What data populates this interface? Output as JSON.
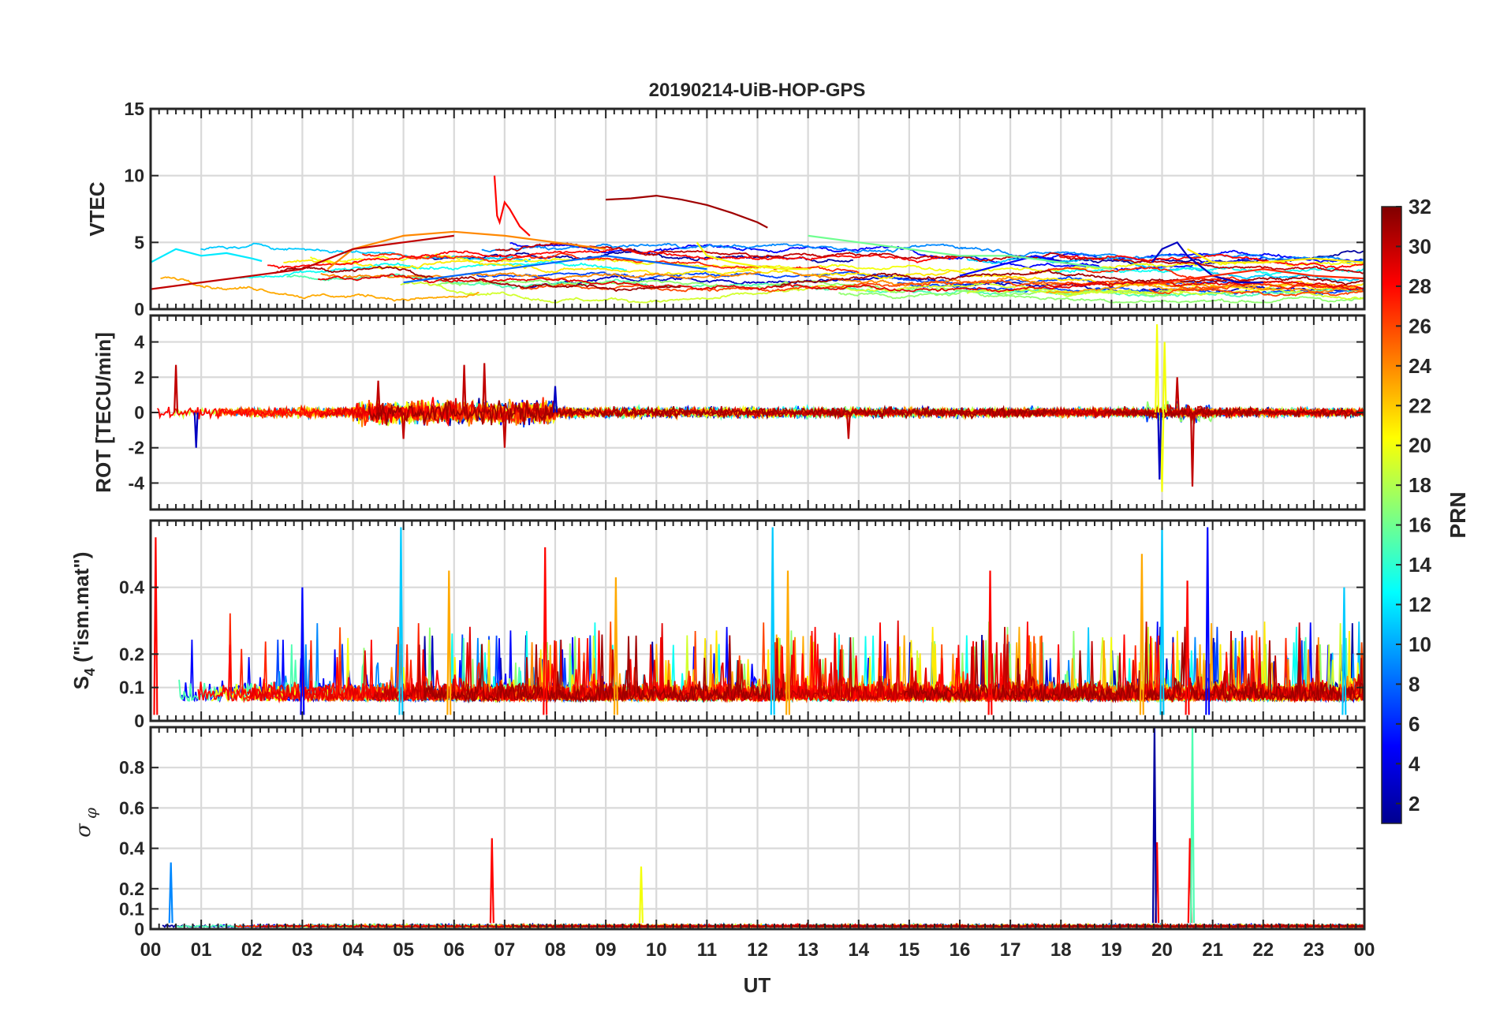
{
  "chart_data": {
    "type": "line",
    "title": "20190214-UiB-HOP-GPS",
    "xlabel": "UT",
    "x_ticks": [
      "00",
      "01",
      "02",
      "03",
      "04",
      "05",
      "06",
      "07",
      "08",
      "09",
      "10",
      "11",
      "12",
      "13",
      "14",
      "15",
      "16",
      "17",
      "18",
      "19",
      "20",
      "21",
      "22",
      "23",
      "00"
    ],
    "xlim": [
      0,
      24
    ],
    "grid": true,
    "colorbar": {
      "label": "PRN",
      "range": [
        1,
        32
      ],
      "ticks": [
        "2",
        "4",
        "6",
        "8",
        "10",
        "12",
        "14",
        "16",
        "18",
        "20",
        "22",
        "24",
        "26",
        "28",
        "30",
        "32"
      ],
      "colormap": "jet"
    },
    "panels": [
      {
        "id": "vtec",
        "ylabel": "VTEC",
        "ylim": [
          0,
          15
        ],
        "yticks": [
          "0",
          "5",
          "10",
          "15"
        ],
        "ytick_values": [
          0,
          5,
          10,
          15
        ],
        "series": [
          {
            "name": "PRN 31",
            "prn": 31,
            "x": [
              9.0,
              9.5,
              10.0,
              10.5,
              11.0,
              11.5,
              12.0,
              12.2
            ],
            "y": [
              8.2,
              8.3,
              8.5,
              8.2,
              7.8,
              7.2,
              6.5,
              6.1
            ]
          },
          {
            "name": "PRN 28",
            "prn": 28,
            "x": [
              6.8,
              6.85,
              6.9,
              7.0,
              7.1,
              7.3,
              7.5
            ],
            "y": [
              10.0,
              7.0,
              6.5,
              8.0,
              7.5,
              6.2,
              5.5
            ]
          },
          {
            "name": "PRN 20",
            "prn": 20,
            "x": [
              10.8,
              11.0,
              11.2,
              11.5,
              12.0,
              12.5,
              13.0
            ],
            "y": [
              5.0,
              4.0,
              3.8,
              3.5,
              3.2,
              3.0,
              3.0
            ]
          },
          {
            "name": "PRN 12",
            "prn": 12,
            "x": [
              0.0,
              0.5,
              1.0,
              1.5,
              2.0,
              2.2
            ],
            "y": [
              3.5,
              4.5,
              4.0,
              4.2,
              3.8,
              3.6
            ]
          },
          {
            "name": "PRN 5",
            "prn": 5,
            "x": [
              16.0,
              16.5,
              17.0,
              17.5,
              18.0,
              18.5
            ],
            "y": [
              2.5,
              3.0,
              3.5,
              4.0,
              3.5,
              3.2
            ]
          },
          {
            "name": "PRN 24",
            "prn": 24,
            "x": [
              3.5,
              4.0,
              5.0,
              6.0,
              7.0,
              8.0,
              9.0
            ],
            "y": [
              3.0,
              4.5,
              5.5,
              5.8,
              5.5,
              5.0,
              4.5
            ]
          },
          {
            "name": "PRN 16",
            "prn": 16,
            "x": [
              13.0,
              14.0,
              15.0,
              16.0,
              17.0,
              18.0,
              19.0
            ],
            "y": [
              5.5,
              5.0,
              4.5,
              4.0,
              4.0,
              3.5,
              3.0
            ]
          },
          {
            "name": "PRN 3",
            "prn": 3,
            "x": [
              19.8,
              20.0,
              20.3,
              20.5,
              21.0,
              21.5,
              22.0
            ],
            "y": [
              3.5,
              4.5,
              5.0,
              4.0,
              2.5,
              2.0,
              2.0
            ]
          },
          {
            "name": "PRN 27",
            "prn": 27,
            "x": [
              20.0,
              21.0,
              22.0,
              23.0,
              24.0
            ],
            "y": [
              2.0,
              2.5,
              3.0,
              2.5,
              2.3
            ]
          },
          {
            "name": "PRN 30",
            "prn": 30,
            "x": [
              0.0,
              1.0,
              2.0,
              3.0,
              4.0,
              5.0,
              6.0
            ],
            "y": [
              1.5,
              2.0,
              2.5,
              3.0,
              4.5,
              5.0,
              5.5
            ]
          },
          {
            "name": "PRN 8",
            "prn": 8,
            "x": [
              5.0,
              6.0,
              7.0,
              8.0,
              9.0,
              10.0,
              11.0
            ],
            "y": [
              2.0,
              2.5,
              3.0,
              3.5,
              4.0,
              3.5,
              3.0
            ]
          },
          {
            "name": "PRN 21",
            "prn": 21,
            "x": [
              20.5,
              21.0,
              22.0,
              23.0,
              24.0
            ],
            "y": [
              4.5,
              3.5,
              3.5,
              3.8,
              3.5
            ]
          }
        ]
      },
      {
        "id": "rot",
        "ylabel": "ROT [TECU/min]",
        "ylim": [
          -5.5,
          5.5
        ],
        "yticks": [
          "-4",
          "-2",
          "0",
          "2",
          "4"
        ],
        "ytick_values": [
          -4,
          -2,
          0,
          2,
          4
        ],
        "spikes": [
          {
            "prn": 30,
            "x": [
              0.5,
              4.5,
              5.0,
              6.2,
              6.6,
              7.0,
              13.8,
              20.3,
              20.6
            ],
            "y": [
              2.7,
              1.8,
              -1.5,
              2.7,
              2.8,
              -2.0,
              -1.5,
              2.0,
              -4.2
            ]
          },
          {
            "prn": 20,
            "x": [
              19.9,
              20.0,
              20.05
            ],
            "y": [
              5.0,
              -4.5,
              4.0
            ]
          },
          {
            "prn": 3,
            "x": [
              19.95,
              0.9,
              8.0
            ],
            "y": [
              -3.8,
              -2.0,
              1.5
            ]
          }
        ]
      },
      {
        "id": "s4",
        "ylabel": "S4 (\"ism.mat\")",
        "ylabel_main": "S",
        "ylabel_sub": "4",
        "ylabel_rest": " (\"ism.mat\")",
        "ylim": [
          0,
          0.6
        ],
        "yticks": [
          "0",
          "0.1",
          "0.2",
          "0.4"
        ],
        "ytick_values": [
          0,
          0.1,
          0.2,
          0.4
        ],
        "spikes": [
          {
            "prn": 11,
            "x": [
              4.95,
              12.3,
              20.0,
              23.6
            ],
            "y": [
              0.58,
              0.58,
              0.58,
              0.4
            ]
          },
          {
            "prn": 28,
            "x": [
              0.1,
              7.8,
              16.6,
              20.5
            ],
            "y": [
              0.55,
              0.52,
              0.45,
              0.42
            ]
          },
          {
            "prn": 5,
            "x": [
              3.0,
              20.9
            ],
            "y": [
              0.4,
              0.58
            ]
          },
          {
            "prn": 23,
            "x": [
              5.9,
              9.2,
              12.6,
              19.6
            ],
            "y": [
              0.45,
              0.43,
              0.45,
              0.5
            ]
          }
        ]
      },
      {
        "id": "sigma_phi",
        "ylabel": "σ φ",
        "ylabel_main": "σ",
        "ylabel_sub": "φ",
        "ylim": [
          0,
          1.0
        ],
        "yticks": [
          "0",
          "0.1",
          "0.2",
          "0.4",
          "0.6",
          "0.8"
        ],
        "ytick_values": [
          0,
          0.1,
          0.2,
          0.4,
          0.6,
          0.8
        ],
        "spikes": [
          {
            "prn": 9,
            "x": [
              0.4
            ],
            "y": [
              0.33
            ]
          },
          {
            "prn": 28,
            "x": [
              6.75,
              19.9,
              20.55
            ],
            "y": [
              0.45,
              0.43,
              0.45
            ]
          },
          {
            "prn": 20,
            "x": [
              9.7
            ],
            "y": [
              0.31
            ]
          },
          {
            "prn": 2,
            "x": [
              19.85
            ],
            "y": [
              1.0
            ]
          },
          {
            "prn": 15,
            "x": [
              20.6
            ],
            "y": [
              1.0
            ]
          }
        ]
      }
    ]
  }
}
